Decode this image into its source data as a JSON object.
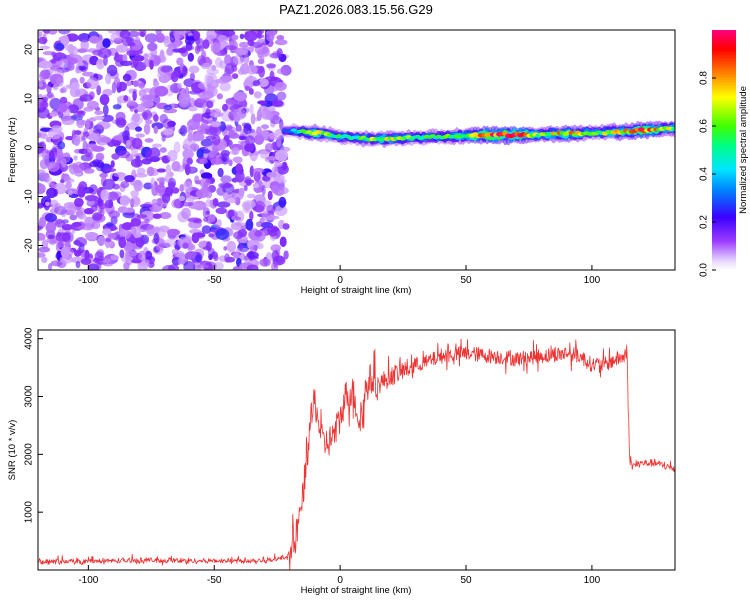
{
  "figure_title": "PAZ1.2026.083.15.56.G29",
  "chart_data": [
    {
      "type": "heatmap",
      "title": "PAZ1.2026.083.15.56.G29",
      "xlabel": "Height of straight line (km)",
      "ylabel": "Frequency (Hz)",
      "xlim": [
        -120,
        133
      ],
      "ylim": [
        -25,
        24
      ],
      "xticks": [
        "-100",
        "-50",
        "0",
        "50",
        "100"
      ],
      "xtick_values": [
        -100,
        -50,
        0,
        50,
        100
      ],
      "yticks": [
        "-20",
        "-10",
        "0",
        "10",
        "20"
      ],
      "ytick_values": [
        -20,
        -10,
        0,
        10,
        20
      ],
      "noise_region_x": [
        -120,
        -19
      ],
      "ridge": {
        "x": [
          -22,
          -15,
          -10,
          -5,
          0,
          5,
          10,
          20,
          30,
          40,
          50,
          60,
          70,
          80,
          90,
          100,
          110,
          120,
          133
        ],
        "freq": [
          3.5,
          3.2,
          3.0,
          2.6,
          2.3,
          2.0,
          1.8,
          1.8,
          2.0,
          2.2,
          2.4,
          2.6,
          2.6,
          2.7,
          2.8,
          3.0,
          3.2,
          3.5,
          4.0
        ],
        "amplitude": [
          0.35,
          0.5,
          0.8,
          0.6,
          0.55,
          0.5,
          0.6,
          0.7,
          0.55,
          0.55,
          0.7,
          0.95,
          0.95,
          0.6,
          0.8,
          0.55,
          0.75,
          0.9,
          0.6
        ]
      },
      "colorbar": {
        "label": "Normalized spectral amplitude",
        "range": [
          0,
          1
        ],
        "ticks": [
          "0.0",
          "0.2",
          "0.4",
          "0.6",
          "0.8"
        ],
        "tick_values": [
          0,
          0.2,
          0.4,
          0.6,
          0.8
        ],
        "colormap": "rainbow (white-violet-blue-cyan-green-yellow-red-magenta)"
      }
    },
    {
      "type": "line",
      "title": "",
      "xlabel": "Height of straight line (km)",
      "ylabel": "SNR (10 * v/v)",
      "xlim": [
        -120,
        133
      ],
      "ylim": [
        0,
        4150
      ],
      "xticks": [
        "-100",
        "-50",
        "0",
        "50",
        "100"
      ],
      "xtick_values": [
        -100,
        -50,
        0,
        50,
        100
      ],
      "yticks": [
        "1000",
        "2000",
        "3000",
        "4000"
      ],
      "ytick_values": [
        1000,
        2000,
        3000,
        4000
      ],
      "series": [
        {
          "name": "SNR",
          "color": "#ee3333",
          "x": [
            -120,
            -100,
            -80,
            -60,
            -40,
            -25,
            -20,
            -18,
            -15,
            -12,
            -10,
            -7,
            -5,
            -3,
            0,
            2,
            5,
            8,
            10,
            12,
            15,
            20,
            25,
            30,
            35,
            40,
            50,
            60,
            70,
            80,
            90,
            95,
            100,
            105,
            110,
            114,
            115,
            116,
            120,
            125,
            133
          ],
          "y": [
            150,
            150,
            170,
            160,
            160,
            180,
            250,
            450,
            1200,
            2500,
            2900,
            2200,
            2200,
            2300,
            2600,
            3000,
            3100,
            2500,
            3100,
            3300,
            3200,
            3350,
            3450,
            3550,
            3600,
            3700,
            3750,
            3700,
            3650,
            3700,
            3750,
            3700,
            3550,
            3550,
            3650,
            3700,
            1900,
            1800,
            1850,
            1850,
            1750
          ]
        }
      ]
    }
  ]
}
